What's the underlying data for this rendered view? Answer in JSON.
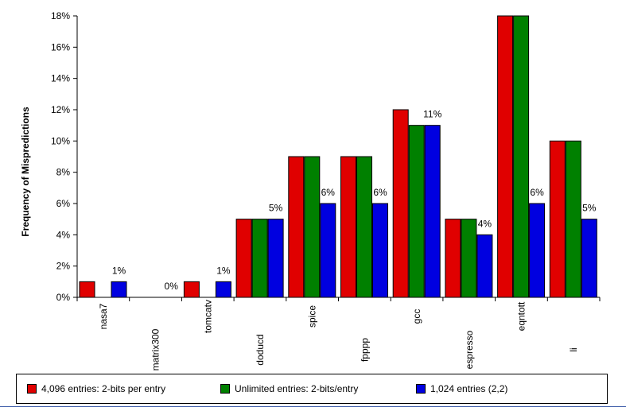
{
  "chart_data": {
    "type": "bar",
    "ylabel": "Frequency of Mispredictions",
    "xlabel": "",
    "ylim": [
      0,
      18
    ],
    "y_ticks": [
      "0%",
      "2%",
      "4%",
      "6%",
      "8%",
      "10%",
      "12%",
      "14%",
      "16%",
      "18%"
    ],
    "categories": [
      "nasa7",
      "matrix300",
      "tomcatv",
      "doducd",
      "spice",
      "fpppp",
      "gcc",
      "espresso",
      "eqntott",
      "li"
    ],
    "series": [
      {
        "name": "4,096 entries: 2-bits per entry",
        "color": "#e00000",
        "values": [
          1,
          0,
          1,
          5,
          9,
          9,
          12,
          5,
          18,
          10
        ]
      },
      {
        "name": "Unlimited entries: 2-bits/entry",
        "color": "#008000",
        "values": [
          0,
          0,
          0,
          5,
          9,
          9,
          11,
          5,
          18,
          10
        ]
      },
      {
        "name": "1,024 entries (2,2)",
        "color": "#0000e0",
        "values": [
          1,
          0,
          1,
          5,
          6,
          6,
          11,
          4,
          6,
          5
        ]
      }
    ],
    "data_labels": [
      "1%",
      "0%",
      "1%",
      "5%",
      "6%",
      "6%",
      "11%",
      "4%",
      "6%",
      "5%"
    ],
    "legend_position": "bottom",
    "grid": false
  }
}
